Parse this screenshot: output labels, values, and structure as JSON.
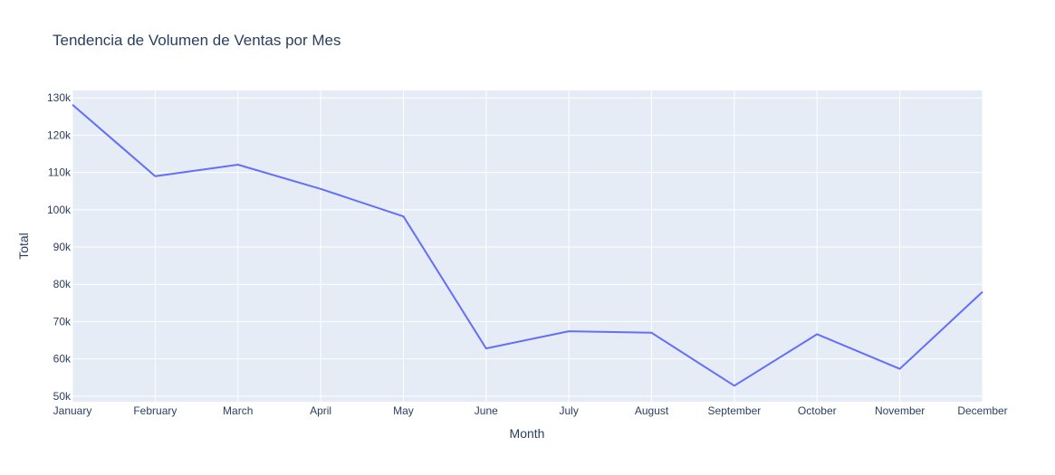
{
  "chart_data": {
    "type": "line",
    "title": "Tendencia de Volumen de Ventas por Mes",
    "xlabel": "Month",
    "ylabel": "Total",
    "categories": [
      "January",
      "February",
      "March",
      "April",
      "May",
      "June",
      "July",
      "August",
      "September",
      "October",
      "November",
      "December"
    ],
    "series": [
      {
        "values": [
          128200,
          109000,
          112100,
          105600,
          98200,
          62800,
          67400,
          67000,
          52800,
          66600,
          57300,
          78000
        ]
      }
    ],
    "ylim": [
      48500,
      132000
    ],
    "yticks": [
      50000,
      60000,
      70000,
      80000,
      90000,
      100000,
      110000,
      120000,
      130000
    ],
    "ytick_labels": [
      "50k",
      "60k",
      "70k",
      "80k",
      "90k",
      "100k",
      "110k",
      "120k",
      "130k"
    ],
    "grid": true,
    "colors": {
      "line": "#636efa",
      "plot_bg": "#e5ecf6",
      "grid": "#ffffff",
      "text": "#2a3f5f"
    }
  }
}
